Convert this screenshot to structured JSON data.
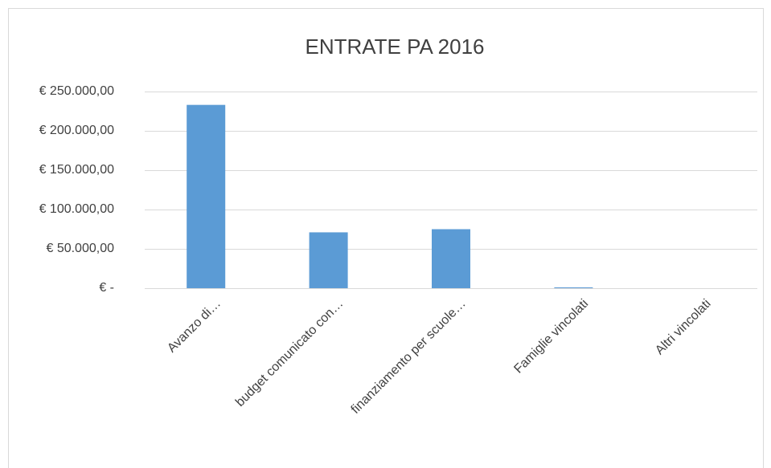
{
  "chart_data": {
    "type": "bar",
    "title": "ENTRATE  PA 2016",
    "categories": [
      "Avanzo di…",
      "budget  comunicato con…",
      "finanziamento per scuole…",
      "Famiglie vincolati",
      "Altri vincolati"
    ],
    "values": [
      233000,
      71000,
      75000,
      1000,
      0
    ],
    "color": "#5b9bd5",
    "ylim": [
      0,
      250000
    ],
    "yticks": [
      {
        "value": 0,
        "label": "€ -"
      },
      {
        "value": 50000,
        "label": "€ 50.000,00"
      },
      {
        "value": 100000,
        "label": "€ 100.000,00"
      },
      {
        "value": 150000,
        "label": "€ 150.000,00"
      },
      {
        "value": 200000,
        "label": "€ 200.000,00"
      },
      {
        "value": 250000,
        "label": "€ 250.000,00"
      }
    ],
    "grid": true
  }
}
